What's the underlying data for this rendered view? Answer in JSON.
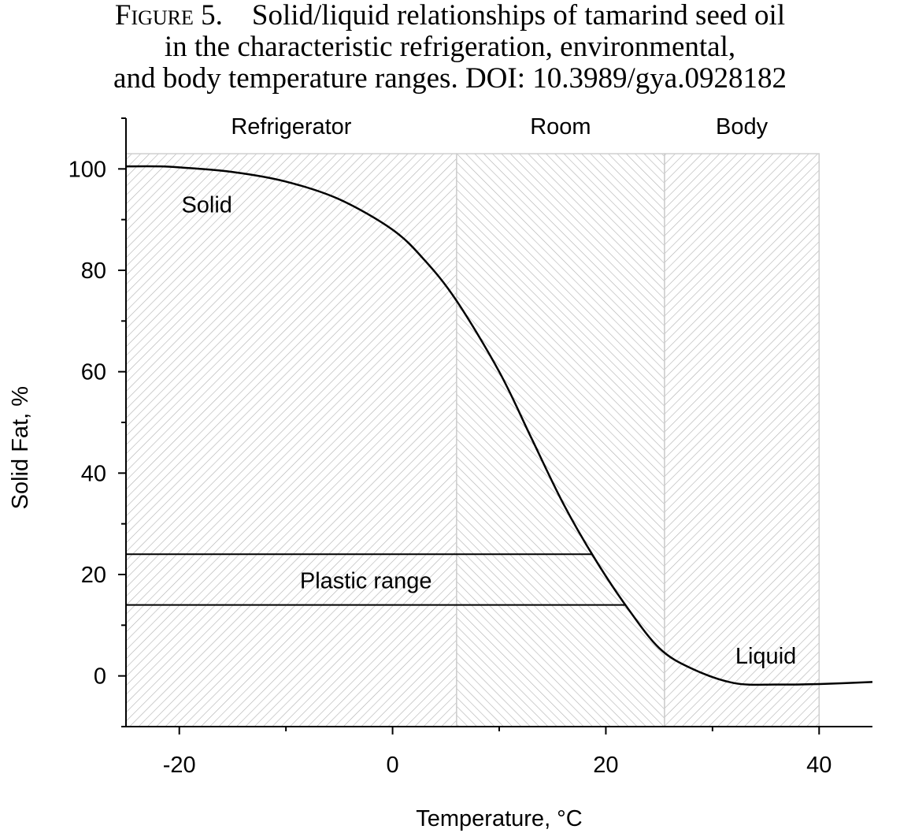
{
  "caption": {
    "figure_label": "Figure 5.",
    "line1": "Solid/liquid relationships of tamarind seed oil",
    "line2": "in the characteristic refrigeration, environmental,",
    "line3": "and body temperature ranges. DOI: 10.3989/gya.0928182"
  },
  "chart_data": {
    "type": "line",
    "xlabel": "Temperature, °C",
    "ylabel": "Solid Fat, %",
    "xlim": [
      -25,
      45
    ],
    "ylim": [
      -10,
      110
    ],
    "x_ticks": [
      -20,
      0,
      20,
      40
    ],
    "y_ticks": [
      0,
      20,
      40,
      60,
      80,
      100
    ],
    "grid": false,
    "regions": [
      {
        "label": "Refrigerator",
        "x_start": -25,
        "x_end": 6,
        "hatch": "forward"
      },
      {
        "label": "Room",
        "x_start": 6,
        "x_end": 25.5,
        "hatch": "backward"
      },
      {
        "label": "Body",
        "x_start": 25.5,
        "x_end": 40,
        "hatch": "forward"
      }
    ],
    "region_top": 103,
    "plastic_range": {
      "label": "Plastic range",
      "y_upper": 24,
      "y_lower": 14
    },
    "annotations": [
      "Solid",
      "Liquid"
    ],
    "series": [
      {
        "x": [
          -25,
          -22,
          -20,
          -15,
          -10,
          -5,
          0,
          3,
          6,
          10,
          13,
          16,
          19,
          22,
          25,
          28,
          32,
          36,
          40,
          45
        ],
        "values": [
          100.5,
          100.5,
          100.3,
          99.4,
          97.5,
          94.0,
          88.0,
          82.0,
          74.0,
          60.0,
          47.0,
          34.0,
          23.0,
          13.5,
          5.5,
          1.5,
          -1.4,
          -1.7,
          -1.6,
          -1.2
        ]
      }
    ]
  }
}
